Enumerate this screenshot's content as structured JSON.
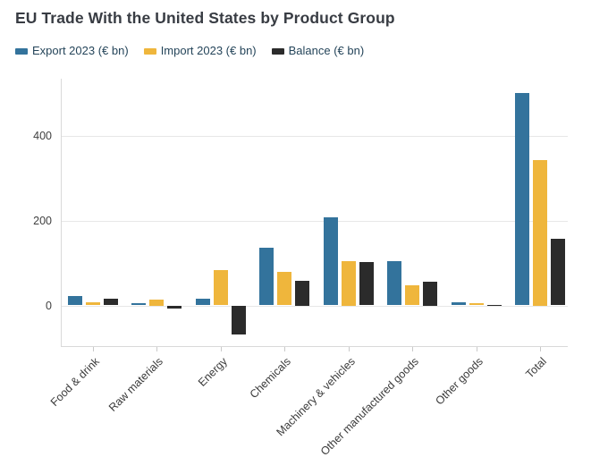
{
  "title": "EU Trade With the United States by Product Group",
  "chart_data": {
    "type": "bar",
    "title": "EU Trade With the United States by Product Group",
    "categories": [
      "Food & drink",
      "Raw materials",
      "Energy",
      "Chemicals",
      "Machinery & vehicles",
      "Other manufactured goods",
      "Other goods",
      "Total"
    ],
    "series": [
      {
        "name": "Export 2023 (€ bn)",
        "color": "#33739C",
        "values": [
          23,
          6,
          15,
          137,
          207,
          104,
          8,
          502
        ]
      },
      {
        "name": "Import 2023 (€ bn)",
        "color": "#EFB63C",
        "values": [
          7,
          13,
          84,
          79,
          105,
          48,
          6,
          344
        ]
      },
      {
        "name": "Balance (€ bn)",
        "color": "#2B2B2B",
        "values": [
          16,
          -7,
          -69,
          58,
          102,
          56,
          2,
          158
        ]
      }
    ],
    "xlabel": "",
    "ylabel": "",
    "yticks": [
      0,
      200,
      400
    ],
    "ylim": [
      -96,
      535
    ],
    "grid": "horizontal",
    "legend_position": "top-left"
  },
  "colors": {
    "background": "#ffffff",
    "grid": "#e7e7e7",
    "axis": "#d9d9d9",
    "title_text": "#383c43",
    "legend_text": "#25455a",
    "tick_text": "#404040",
    "xlabel_text": "#3b3b3b"
  }
}
